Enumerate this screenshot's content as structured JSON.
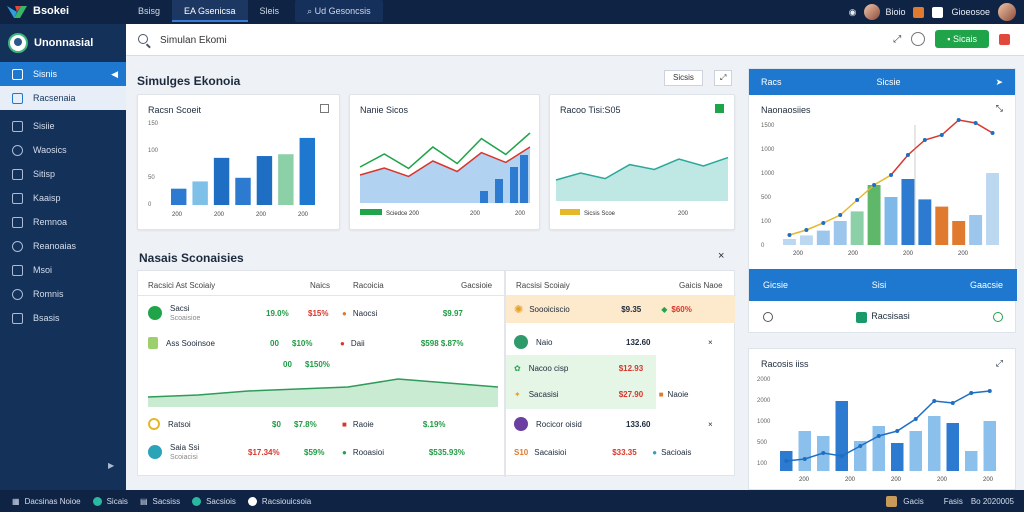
{
  "topbar": {
    "brand": "Bsokei",
    "nav": [
      "Bsisg",
      "EA Gsenicsa",
      "Sleis",
      "Ud Gesoncsis"
    ],
    "right": [
      "Bioio",
      "Gioeosoe"
    ]
  },
  "sidebar": {
    "title": "Unonnasial",
    "items": [
      {
        "label": "Sisnis",
        "icon": "dashboard-icon"
      },
      {
        "label": "Racsenaia",
        "icon": "reports-icon"
      },
      {
        "label": "Sisiie",
        "icon": "table-icon"
      },
      {
        "label": "Waosics",
        "icon": "users-icon"
      },
      {
        "label": "Sitisp",
        "icon": "calendar-icon"
      },
      {
        "label": "Kaaisp",
        "icon": "folder-icon"
      },
      {
        "label": "Remnoa",
        "icon": "chart-icon"
      },
      {
        "label": "Reanoaias",
        "icon": "settings-icon"
      },
      {
        "label": "Msoi",
        "icon": "mail-icon"
      },
      {
        "label": "Romnis",
        "icon": "globe-icon"
      },
      {
        "label": "Bsasis",
        "icon": "link-icon"
      }
    ]
  },
  "search": {
    "value": "Simulan Ekomi"
  },
  "toolbar": {
    "action_label": "Sicais"
  },
  "main": {
    "title": "Simulges Ekonoia",
    "toolbar_btn": "Sicsis",
    "card1": {
      "title": "Racsn Scoeit",
      "yticks": [
        "150",
        "100",
        "50",
        "0"
      ],
      "xticks": [
        "200",
        "200",
        "200",
        "200"
      ]
    },
    "card2": {
      "title": "Nanie Sicos",
      "legend": "Sciedce  200",
      "xticks": [
        "200",
        "200"
      ]
    },
    "card3": {
      "title": "Racoo Tisi:S05",
      "legend": "Sicsis Scoe",
      "xticks": [
        "200"
      ]
    }
  },
  "list": {
    "title": "Nasais Sconaisies",
    "left_headers": [
      "Racsici Ast Scoiaiy",
      "Naics",
      "Racoicia",
      "Gacsioie"
    ],
    "right_headers": [
      "Racsisi Scoiaiy",
      "Gaicis Naoe"
    ],
    "left_rows": [
      {
        "name": "Sacsi",
        "sub": "Scoaisioe",
        "v1": "19.0%",
        "v2": "$15%",
        "n2": "Naocsi",
        "v3": "$9.97"
      },
      {
        "name": "Ass Sooinsoe",
        "v1": "00",
        "v2": "$10%",
        "n2": "Daii",
        "v3": "$598 $.87%"
      },
      {
        "name": "",
        "v1": "00",
        "v2": "$150%"
      },
      {
        "name": "Ratsoi",
        "v1": "$0",
        "v2": "$7.8%",
        "n2": "Raoie",
        "v3": "$.19%"
      },
      {
        "name": "Saia Ssi",
        "sub": "Scoiacisi",
        "v1": "$17.34%",
        "v2": "$59%",
        "n2": "Rooasioi",
        "v3": "$535.93%"
      }
    ],
    "right_rows": [
      {
        "name": "Soooiciscio",
        "v1": "$9.35",
        "v2": "$60%"
      },
      {
        "name": "Naio",
        "v1": "132.60"
      },
      {
        "name": "Nacoo cisp",
        "v1": "$12.93"
      },
      {
        "name": "Sacasisi",
        "v1": "$27.90",
        "v2": "Naoie"
      },
      {
        "name": "Rocicor oisid",
        "v1": "133.60"
      },
      {
        "name": "Sacaisioi",
        "v1": "$33.35",
        "v2": "Sacioais"
      }
    ]
  },
  "right_card": {
    "head": "Racs",
    "head2": "Sicsie",
    "title": "Naonaosiies",
    "yticks": [
      "1500",
      "1000",
      "1000",
      "500",
      "100",
      "0"
    ],
    "xticks": [
      "200",
      "200",
      "200",
      "200"
    ],
    "tabs": [
      "Gicsie",
      "Sisi",
      "Gaacsie"
    ],
    "foot": "Racsisasi"
  },
  "right_card2": {
    "title": "Racosis iiss",
    "yticks": [
      "2000",
      "2000",
      "1000",
      "500",
      "100"
    ],
    "xticks": [
      "200",
      "200",
      "200",
      "200",
      "200"
    ]
  },
  "statusbar": {
    "items": [
      "Dacsinas Noioe",
      "Sicais",
      "Sacsiss",
      "Sacsiois",
      "Racsiouicsoia"
    ],
    "right": [
      "Gacis",
      "Fasis",
      "Bo 2020005"
    ]
  },
  "chart_data": [
    {
      "type": "bar",
      "title": "Racsn Scoeit",
      "values": [
        18,
        26,
        52,
        30,
        54,
        56,
        74
      ],
      "ylim": [
        0,
        150
      ]
    },
    {
      "type": "area",
      "title": "Nanie Sicos",
      "values": [
        40,
        50,
        38,
        60,
        45,
        72,
        58,
        80
      ]
    },
    {
      "type": "area",
      "title": "Racoo Tisi:S05",
      "values": [
        30,
        40,
        32,
        52,
        45,
        60,
        50,
        62
      ]
    },
    {
      "type": "bar",
      "title": "Naonaosiies",
      "values": [
        5,
        8,
        12,
        20,
        28,
        50,
        40,
        55,
        38,
        32,
        20,
        25,
        60
      ]
    },
    {
      "type": "line",
      "title": "Racosis iiss",
      "values": [
        10,
        12,
        18,
        15,
        25,
        35,
        40,
        52,
        70,
        68,
        78,
        80
      ]
    }
  ]
}
